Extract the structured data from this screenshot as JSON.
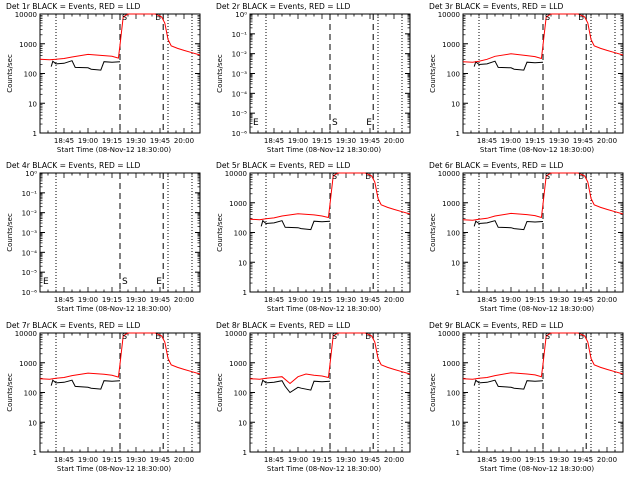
{
  "chart_data": [
    {
      "type": "line",
      "title": "Det 1r BLACK = Events, RED = LLD",
      "xlabel": "Start Time (08-Nov-12 18:30:00)",
      "ylabel": "Counts/sec",
      "yscale": "log",
      "ylim": [
        1,
        10000
      ],
      "ytick_labels": [
        "1",
        "10",
        "100",
        "1000",
        "10000"
      ],
      "xtick_labels": [
        "18:45",
        "19:00",
        "19:15",
        "19:30",
        "19:45",
        "20:00"
      ],
      "xlim": [
        "18:30",
        "20:10"
      ],
      "markers": [
        "S",
        "E"
      ],
      "series": [
        {
          "name": "RED = LLD",
          "color": "#ff0000",
          "x": [
            "18:30",
            "18:36",
            "18:40",
            "18:45",
            "18:50",
            "19:00",
            "19:10",
            "19:15",
            "19:19",
            "19:20",
            "19:22",
            "19:25",
            "19:30",
            "19:35",
            "19:38",
            "19:42",
            "19:44",
            "19:46",
            "19:48",
            "19:50",
            "19:52",
            "19:56",
            "20:00",
            "20:05",
            "20:10"
          ],
          "y": [
            300,
            290,
            300,
            320,
            360,
            440,
            400,
            380,
            330,
            900,
            8000,
            10000,
            11000,
            11000,
            10500,
            10000,
            9000,
            8000,
            5000,
            1400,
            850,
            700,
            600,
            500,
            420
          ]
        },
        {
          "name": "BLACK = Events",
          "color": "#000000",
          "x": [
            "18:37",
            "18:38",
            "18:40",
            "18:45",
            "18:50",
            "18:52",
            "19:00",
            "19:02",
            "19:08",
            "19:10",
            "19:15",
            "19:20"
          ],
          "y": [
            170,
            260,
            210,
            220,
            270,
            160,
            155,
            140,
            130,
            250,
            240,
            250
          ]
        }
      ]
    },
    {
      "type": "line",
      "title": "Det 2r BLACK = Events, RED = LLD",
      "xlabel": "Start Time (08-Nov-12 18:30:00)",
      "ylabel": "Counts/sec",
      "yscale": "log",
      "ylim": [
        1e-06,
        1
      ],
      "ytick_labels": [
        "10⁰",
        "10⁻¹",
        "10⁻²",
        "10⁻³",
        "10⁻⁴",
        "10⁻⁵",
        "10⁻⁶"
      ],
      "xtick_labels": [
        "18:45",
        "19:00",
        "19:15",
        "19:30",
        "19:45",
        "20:00"
      ],
      "xlim": [
        "18:30",
        "20:10"
      ],
      "markers": [
        "E",
        "S",
        "E"
      ],
      "series": []
    },
    {
      "type": "line",
      "title": "Det 3r BLACK = Events, RED = LLD",
      "xlabel": "Start Time (08-Nov-12 18:30:00)",
      "ylabel": "Counts/sec",
      "yscale": "log",
      "ylim": [
        1,
        10000
      ],
      "ytick_labels": [
        "1",
        "10",
        "100",
        "1000",
        "10000"
      ],
      "xtick_labels": [
        "18:45",
        "19:00",
        "19:15",
        "19:30",
        "19:45",
        "20:00"
      ],
      "xlim": [
        "18:30",
        "20:10"
      ],
      "markers": [
        "S",
        "E"
      ],
      "series": [
        {
          "name": "RED = LLD",
          "color": "#ff0000",
          "x": [
            "18:30",
            "18:36",
            "18:40",
            "18:45",
            "18:50",
            "19:00",
            "19:10",
            "19:15",
            "19:19",
            "19:20",
            "19:22",
            "19:25",
            "19:30",
            "19:35",
            "19:38",
            "19:42",
            "19:44",
            "19:46",
            "19:48",
            "19:50",
            "19:52",
            "19:56",
            "20:00",
            "20:05",
            "20:10"
          ],
          "y": [
            250,
            240,
            260,
            300,
            380,
            460,
            400,
            370,
            320,
            900,
            8000,
            10000,
            11000,
            11000,
            10500,
            10000,
            9000,
            8000,
            5000,
            1400,
            850,
            700,
            600,
            500,
            420
          ]
        },
        {
          "name": "BLACK = Events",
          "color": "#000000",
          "x": [
            "18:37",
            "18:38",
            "18:40",
            "18:45",
            "18:50",
            "18:52",
            "19:00",
            "19:02",
            "19:08",
            "19:10",
            "19:15",
            "19:20"
          ],
          "y": [
            170,
            250,
            200,
            210,
            260,
            160,
            155,
            140,
            130,
            240,
            230,
            240
          ]
        }
      ]
    },
    {
      "type": "line",
      "title": "Det 4r BLACK = Events, RED = LLD",
      "xlabel": "Start Time (08-Nov-12 18:30:00)",
      "ylabel": "Counts/sec",
      "yscale": "log",
      "ylim": [
        1e-06,
        1
      ],
      "ytick_labels": [
        "10⁰",
        "10⁻¹",
        "10⁻²",
        "10⁻³",
        "10⁻⁴",
        "10⁻⁵",
        "10⁻⁶"
      ],
      "xtick_labels": [
        "18:45",
        "19:00",
        "19:15",
        "19:30",
        "19:45",
        "20:00"
      ],
      "xlim": [
        "18:30",
        "20:10"
      ],
      "markers": [
        "E",
        "S",
        "E"
      ],
      "series": []
    },
    {
      "type": "line",
      "title": "Det 5r BLACK = Events, RED = LLD",
      "xlabel": "Start Time (08-Nov-12 18:30:00)",
      "ylabel": "Counts/sec",
      "yscale": "log",
      "ylim": [
        1,
        10000
      ],
      "ytick_labels": [
        "1",
        "10",
        "100",
        "1000",
        "10000"
      ],
      "xtick_labels": [
        "18:45",
        "19:00",
        "19:15",
        "19:30",
        "19:45",
        "20:00"
      ],
      "xlim": [
        "18:30",
        "20:10"
      ],
      "markers": [
        "S",
        "E"
      ],
      "series": [
        {
          "name": "RED = LLD",
          "color": "#ff0000",
          "x": [
            "18:30",
            "18:36",
            "18:40",
            "18:45",
            "18:50",
            "19:00",
            "19:10",
            "19:15",
            "19:19",
            "19:20",
            "19:22",
            "19:25",
            "19:30",
            "19:35",
            "19:38",
            "19:42",
            "19:44",
            "19:46",
            "19:48",
            "19:50",
            "19:52",
            "19:56",
            "20:00",
            "20:05",
            "20:10"
          ],
          "y": [
            280,
            270,
            290,
            310,
            360,
            430,
            390,
            360,
            320,
            900,
            8000,
            10000,
            11000,
            11000,
            10500,
            10000,
            9000,
            8000,
            5000,
            1400,
            850,
            700,
            600,
            500,
            420
          ]
        },
        {
          "name": "BLACK = Events",
          "color": "#000000",
          "x": [
            "18:37",
            "18:38",
            "18:40",
            "18:45",
            "18:50",
            "18:52",
            "19:00",
            "19:02",
            "19:08",
            "19:10",
            "19:15",
            "19:20"
          ],
          "y": [
            160,
            250,
            200,
            210,
            250,
            150,
            145,
            135,
            125,
            240,
            230,
            240
          ]
        }
      ]
    },
    {
      "type": "line",
      "title": "Det 6r BLACK = Events, RED = LLD",
      "xlabel": "Start Time (08-Nov-12 18:30:00)",
      "ylabel": "Counts/sec",
      "yscale": "log",
      "ylim": [
        1,
        10000
      ],
      "ytick_labels": [
        "1",
        "10",
        "100",
        "1000",
        "10000"
      ],
      "xtick_labels": [
        "18:45",
        "19:00",
        "19:15",
        "19:30",
        "19:45",
        "20:00"
      ],
      "xlim": [
        "18:30",
        "20:10"
      ],
      "markers": [
        "S",
        "E"
      ],
      "series": [
        {
          "name": "RED = LLD",
          "color": "#ff0000",
          "x": [
            "18:30",
            "18:36",
            "18:40",
            "18:45",
            "18:50",
            "19:00",
            "19:10",
            "19:15",
            "19:19",
            "19:20",
            "19:22",
            "19:25",
            "19:30",
            "19:35",
            "19:38",
            "19:42",
            "19:44",
            "19:46",
            "19:48",
            "19:50",
            "19:52",
            "19:56",
            "20:00",
            "20:05",
            "20:10"
          ],
          "y": [
            270,
            260,
            280,
            300,
            360,
            440,
            400,
            370,
            320,
            900,
            8000,
            10000,
            11000,
            11000,
            10500,
            10000,
            9000,
            8000,
            5000,
            1400,
            850,
            700,
            600,
            500,
            420
          ]
        },
        {
          "name": "BLACK = Events",
          "color": "#000000",
          "x": [
            "18:37",
            "18:38",
            "18:40",
            "18:45",
            "18:50",
            "18:52",
            "19:00",
            "19:02",
            "19:08",
            "19:10",
            "19:15",
            "19:20"
          ],
          "y": [
            160,
            240,
            200,
            210,
            250,
            150,
            145,
            135,
            125,
            235,
            225,
            235
          ]
        }
      ]
    },
    {
      "type": "line",
      "title": "Det 7r BLACK = Events, RED = LLD",
      "xlabel": "Start Time (08-Nov-12 18:30:00)",
      "ylabel": "Counts/sec",
      "yscale": "log",
      "ylim": [
        1,
        10000
      ],
      "ytick_labels": [
        "1",
        "10",
        "100",
        "1000",
        "10000"
      ],
      "xtick_labels": [
        "18:45",
        "19:00",
        "19:15",
        "19:30",
        "19:45",
        "20:00"
      ],
      "xlim": [
        "18:30",
        "20:10"
      ],
      "markers": [
        "S",
        "E"
      ],
      "series": [
        {
          "name": "RED = LLD",
          "color": "#ff0000",
          "x": [
            "18:30",
            "18:36",
            "18:40",
            "18:45",
            "18:50",
            "19:00",
            "19:10",
            "19:15",
            "19:19",
            "19:20",
            "19:22",
            "19:25",
            "19:30",
            "19:35",
            "19:38",
            "19:42",
            "19:44",
            "19:46",
            "19:48",
            "19:50",
            "19:52",
            "19:56",
            "20:00",
            "20:05",
            "20:10"
          ],
          "y": [
            290,
            280,
            300,
            320,
            370,
            450,
            410,
            380,
            330,
            900,
            8000,
            10000,
            11000,
            11000,
            10500,
            10000,
            9000,
            8000,
            5000,
            1400,
            850,
            700,
            600,
            500,
            420
          ]
        },
        {
          "name": "BLACK = Events",
          "color": "#000000",
          "x": [
            "18:37",
            "18:38",
            "18:40",
            "18:45",
            "18:50",
            "18:52",
            "19:00",
            "19:02",
            "19:08",
            "19:10",
            "19:15",
            "19:20"
          ],
          "y": [
            170,
            260,
            210,
            220,
            260,
            160,
            150,
            140,
            130,
            250,
            240,
            250
          ]
        }
      ]
    },
    {
      "type": "line",
      "title": "Det 8r BLACK = Events, RED = LLD",
      "xlabel": "Start Time (08-Nov-12 18:30:00)",
      "ylabel": "Counts/sec",
      "yscale": "log",
      "ylim": [
        1,
        10000
      ],
      "ytick_labels": [
        "1",
        "10",
        "100",
        "1000",
        "10000"
      ],
      "xtick_labels": [
        "18:45",
        "19:00",
        "19:15",
        "19:30",
        "19:45",
        "20:00"
      ],
      "xlim": [
        "18:30",
        "20:10"
      ],
      "markers": [
        "S",
        "E"
      ],
      "series": [
        {
          "name": "RED = LLD",
          "color": "#ff0000",
          "x": [
            "18:30",
            "18:36",
            "18:40",
            "18:45",
            "18:50",
            "18:55",
            "19:00",
            "19:05",
            "19:10",
            "19:15",
            "19:19",
            "19:20",
            "19:22",
            "19:25",
            "19:30",
            "19:35",
            "19:38",
            "19:42",
            "19:44",
            "19:46",
            "19:48",
            "19:50",
            "19:52",
            "19:56",
            "20:00",
            "20:05",
            "20:10"
          ],
          "y": [
            290,
            280,
            300,
            320,
            340,
            200,
            340,
            420,
            380,
            360,
            320,
            900,
            8000,
            10000,
            11000,
            11000,
            10500,
            10000,
            9000,
            8000,
            5000,
            1400,
            850,
            700,
            600,
            500,
            420
          ]
        },
        {
          "name": "BLACK = Events",
          "color": "#000000",
          "x": [
            "18:37",
            "18:38",
            "18:40",
            "18:45",
            "18:50",
            "18:52",
            "18:55",
            "19:00",
            "19:02",
            "19:08",
            "19:10",
            "19:15",
            "19:20"
          ],
          "y": [
            170,
            260,
            210,
            220,
            250,
            160,
            100,
            150,
            140,
            120,
            240,
            230,
            240
          ]
        }
      ]
    },
    {
      "type": "line",
      "title": "Det 9r BLACK = Events, RED = LLD",
      "xlabel": "Start Time (08-Nov-12 18:30:00)",
      "ylabel": "Counts/sec",
      "yscale": "log",
      "ylim": [
        1,
        10000
      ],
      "ytick_labels": [
        "1",
        "10",
        "100",
        "1000",
        "10000"
      ],
      "xtick_labels": [
        "18:45",
        "19:00",
        "19:15",
        "19:30",
        "19:45",
        "20:00"
      ],
      "xlim": [
        "18:30",
        "20:10"
      ],
      "markers": [
        "S",
        "E"
      ],
      "series": [
        {
          "name": "RED = LLD",
          "color": "#ff0000",
          "x": [
            "18:30",
            "18:36",
            "18:40",
            "18:45",
            "18:50",
            "19:00",
            "19:10",
            "19:15",
            "19:19",
            "19:20",
            "19:22",
            "19:25",
            "19:30",
            "19:35",
            "19:38",
            "19:42",
            "19:44",
            "19:46",
            "19:48",
            "19:50",
            "19:52",
            "19:56",
            "20:00",
            "20:05",
            "20:10"
          ],
          "y": [
            290,
            280,
            300,
            320,
            370,
            460,
            420,
            390,
            340,
            900,
            8000,
            10000,
            11000,
            11000,
            10500,
            10000,
            9000,
            8000,
            5000,
            1400,
            850,
            700,
            600,
            500,
            420
          ]
        },
        {
          "name": "BLACK = Events",
          "color": "#000000",
          "x": [
            "18:37",
            "18:38",
            "18:40",
            "18:45",
            "18:50",
            "18:52",
            "19:00",
            "19:02",
            "19:08",
            "19:10",
            "19:15",
            "19:20"
          ],
          "y": [
            170,
            260,
            210,
            220,
            260,
            160,
            150,
            140,
            130,
            250,
            240,
            250
          ]
        }
      ]
    }
  ],
  "vlines": {
    "dotted": [
      "18:40",
      "19:50",
      "20:05"
    ],
    "dashed": [
      "19:20",
      "19:47"
    ]
  }
}
